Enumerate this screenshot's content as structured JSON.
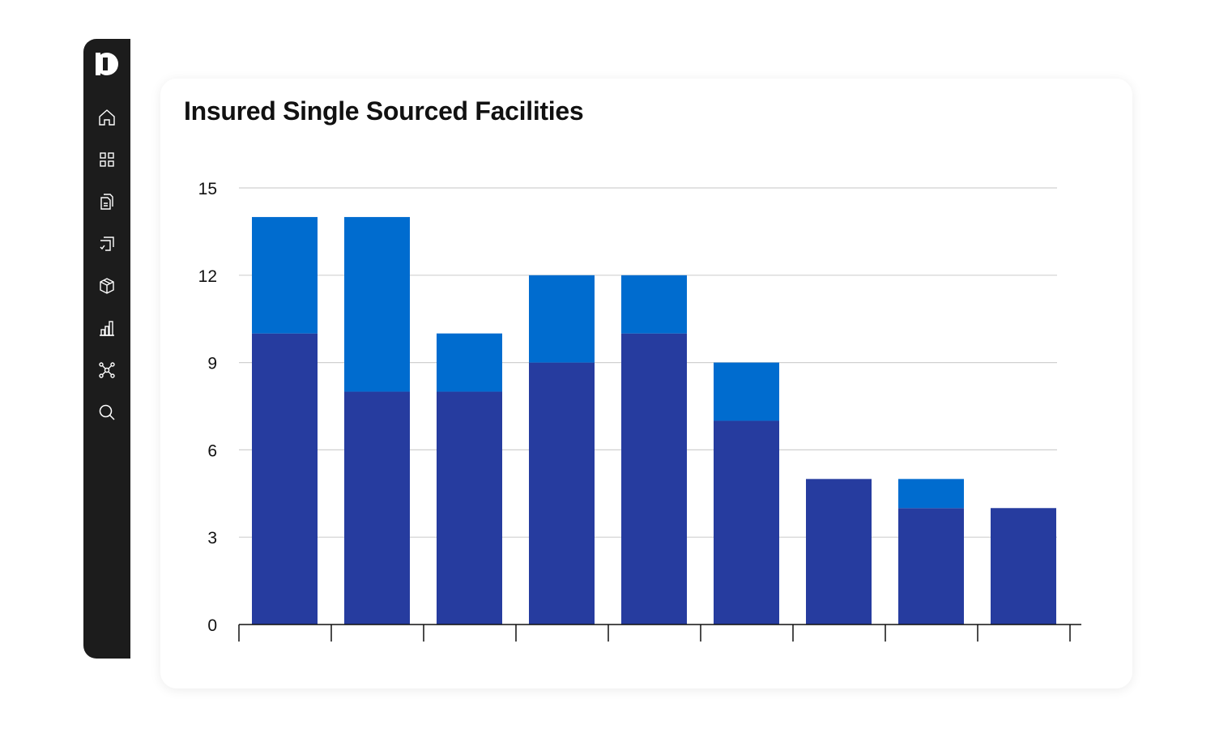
{
  "sidebar": {
    "logo": "app-logo",
    "items": [
      {
        "icon": "home-icon"
      },
      {
        "icon": "grid-icon"
      },
      {
        "icon": "documents-icon"
      },
      {
        "icon": "tasks-icon"
      },
      {
        "icon": "package-icon"
      },
      {
        "icon": "bar-chart-icon"
      },
      {
        "icon": "network-icon"
      },
      {
        "icon": "search-icon"
      }
    ]
  },
  "chart_data": {
    "type": "bar",
    "stacked": true,
    "title": "Insured Single Sourced Facilities",
    "xlabel": "",
    "ylabel": "",
    "categories": [
      "",
      "",
      "",
      "",
      "",
      "",
      "",
      "",
      ""
    ],
    "series": [
      {
        "color": "#263c9f",
        "values": [
          10,
          8,
          8,
          9,
          10,
          7,
          5,
          4,
          4
        ]
      },
      {
        "color": "#006ccf",
        "values": [
          4,
          6,
          2,
          3,
          2,
          2,
          0,
          1,
          0
        ]
      }
    ],
    "ylim": [
      0,
      15
    ],
    "yticks": [
      "0",
      "3",
      "6",
      "9",
      "12",
      "15"
    ],
    "grid": true,
    "legend": "none"
  }
}
